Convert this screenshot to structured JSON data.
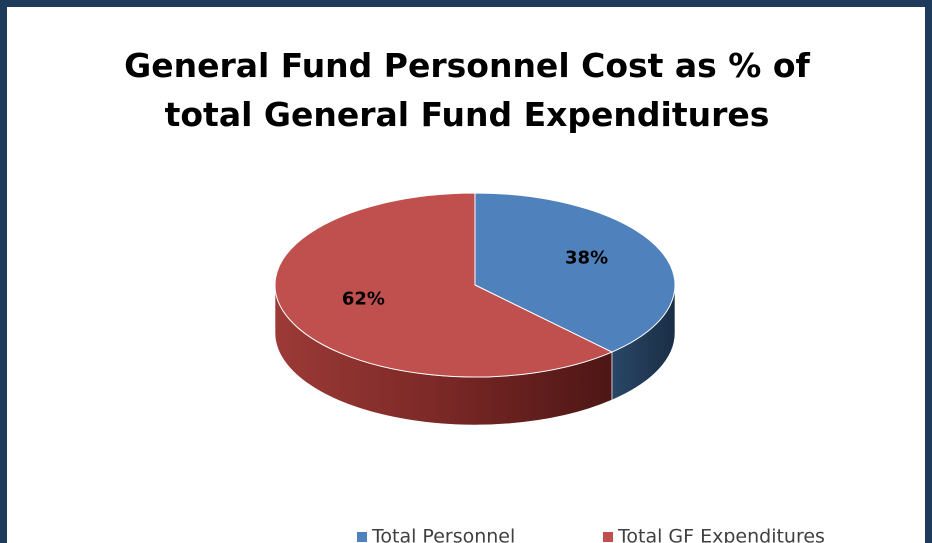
{
  "chart_data": {
    "type": "pie",
    "title": [
      "General Fund Personnel Cost as % of",
      "total General Fund Expenditures"
    ],
    "categories": [
      "Total Personnel",
      "Total GF Expenditures"
    ],
    "values": [
      38,
      62
    ],
    "value_labels": [
      "38%",
      "62%"
    ],
    "colors": [
      "#4f81bd",
      "#c0504d"
    ],
    "legend": "bottom"
  }
}
